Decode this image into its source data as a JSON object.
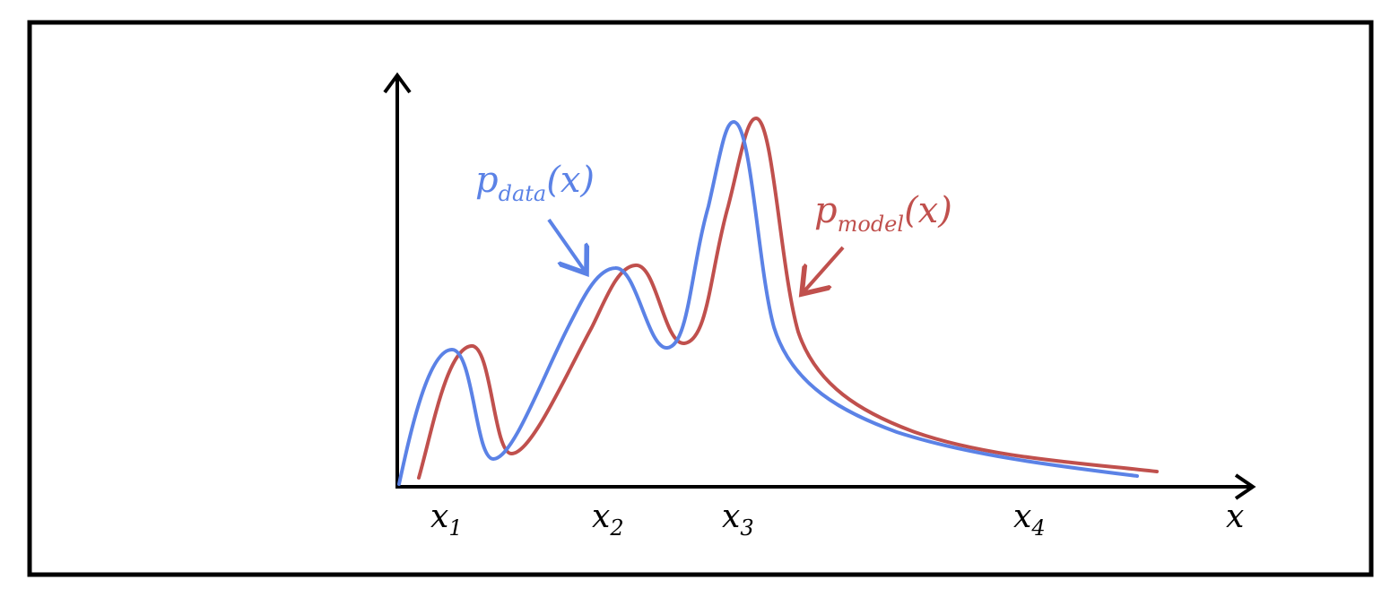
{
  "colors": {
    "data_curve": "#5b82e6",
    "model_curve": "#c0504d",
    "axes": "#000000",
    "frame": "#000000"
  },
  "labels": {
    "p_data": {
      "base": "p",
      "sub": "data",
      "arg": "(x)"
    },
    "p_model": {
      "base": "p",
      "sub": "model",
      "arg": "(x)"
    },
    "x_axis": "x",
    "ticks": [
      {
        "base": "x",
        "sub": "1"
      },
      {
        "base": "x",
        "sub": "2"
      },
      {
        "base": "x",
        "sub": "3"
      },
      {
        "base": "x",
        "sub": "4"
      }
    ]
  }
}
